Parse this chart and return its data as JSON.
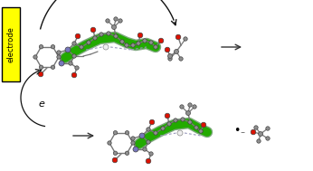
{
  "electrode_color": "#FFFF00",
  "electrode_text": "electrode",
  "electrode_border": "#000000",
  "electron_label": "e",
  "background": "#FFFFFF",
  "green_ribbon": "#22AA00",
  "green_ribbon_dark": "#005500",
  "arrow_color": "#111111",
  "atom_gray": "#909090",
  "atom_gray_light": "#BBBBBB",
  "atom_red": "#DD1100",
  "atom_blue": "#7777BB",
  "atom_white": "#EEEEEE",
  "dashed_color": "#9999BB",
  "bond_color": "#777777",
  "fig_w": 3.46,
  "fig_h": 1.89,
  "dpi": 100
}
